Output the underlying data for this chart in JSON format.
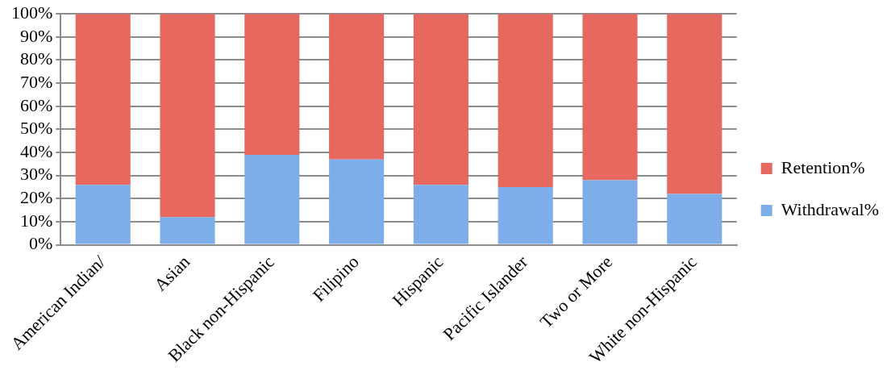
{
  "chart_data": {
    "type": "bar",
    "stacked": true,
    "categories": [
      "American Indian/",
      "Asian",
      "Black non-Hispanic",
      "Filipino",
      "Hispanic",
      "Pacific Islander",
      "Two or More",
      "White non-Hispanic"
    ],
    "series": [
      {
        "name": "Withdrawal%",
        "color": "#7eaeea",
        "values": [
          26,
          12,
          39,
          37,
          26,
          25,
          28,
          22
        ]
      },
      {
        "name": "Retention%",
        "color": "#e6685f",
        "values": [
          74,
          88,
          61,
          63,
          74,
          75,
          72,
          78
        ]
      }
    ],
    "ylim": [
      0,
      100
    ],
    "yticks": [
      {
        "value": 0,
        "label": "0%"
      },
      {
        "value": 10,
        "label": "10%"
      },
      {
        "value": 20,
        "label": "20%"
      },
      {
        "value": 30,
        "label": "30%"
      },
      {
        "value": 40,
        "label": "40%"
      },
      {
        "value": 50,
        "label": "50%"
      },
      {
        "value": 60,
        "label": "60%"
      },
      {
        "value": 70,
        "label": "70%"
      },
      {
        "value": 80,
        "label": "80%"
      },
      {
        "value": 90,
        "label": "90%"
      },
      {
        "value": 100,
        "label": "100%"
      }
    ],
    "grid": "y",
    "legend": "right"
  }
}
